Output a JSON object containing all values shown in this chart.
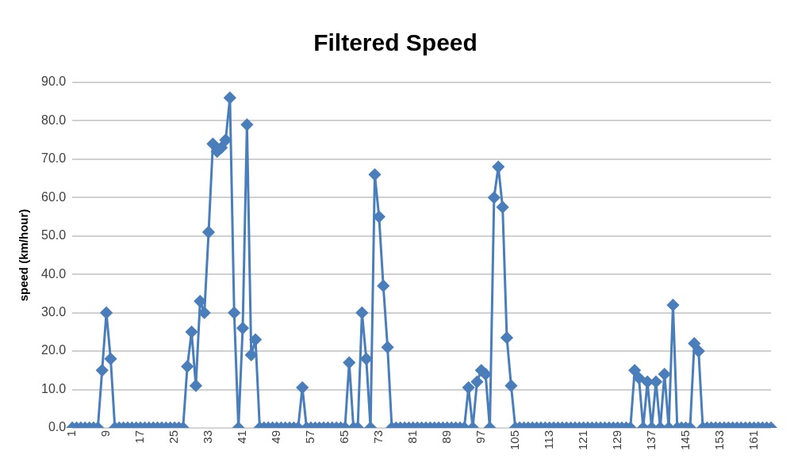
{
  "chart_data": {
    "type": "line",
    "title": "Filtered Speed",
    "ylabel": "speed (km/hour)",
    "categories": [
      "1",
      null,
      null,
      null,
      null,
      null,
      null,
      null,
      "9",
      null,
      null,
      null,
      null,
      null,
      null,
      null,
      "17",
      null,
      null,
      null,
      null,
      null,
      null,
      null,
      "25",
      null,
      null,
      null,
      null,
      null,
      null,
      null,
      "33",
      null,
      null,
      null,
      null,
      null,
      null,
      null,
      "41",
      null,
      null,
      null,
      null,
      null,
      null,
      null,
      "49",
      null,
      null,
      null,
      null,
      null,
      null,
      null,
      "57",
      null,
      null,
      null,
      null,
      null,
      null,
      null,
      "65",
      null,
      null,
      null,
      null,
      null,
      null,
      null,
      "73",
      null,
      null,
      null,
      null,
      null,
      null,
      null,
      "81",
      null,
      null,
      null,
      null,
      null,
      null,
      null,
      "89",
      null,
      null,
      null,
      null,
      null,
      null,
      null,
      "97",
      null,
      null,
      null,
      null,
      null,
      null,
      null,
      "105",
      null,
      null,
      null,
      null,
      null,
      null,
      null,
      "113",
      null,
      null,
      null,
      null,
      null,
      null,
      null,
      "121",
      null,
      null,
      null,
      null,
      null,
      null,
      null,
      "129",
      null,
      null,
      null,
      null,
      null,
      null,
      null,
      "137",
      null,
      null,
      null,
      null,
      null,
      null,
      null,
      "145",
      null,
      null,
      null,
      null,
      null,
      null,
      null,
      "153",
      null,
      null,
      null,
      null,
      null,
      null,
      null,
      "161",
      null,
      null,
      null,
      null
    ],
    "series": [
      {
        "color": "#4a7ebb",
        "values": [
          0,
          0,
          0,
          0,
          0,
          0,
          0,
          15,
          30,
          18,
          0,
          0,
          0,
          0,
          0,
          0,
          0,
          0,
          0,
          0,
          0,
          0,
          0,
          0,
          0,
          0,
          0,
          16,
          25,
          11,
          33,
          30,
          51,
          74,
          72,
          73,
          75,
          86,
          30,
          0,
          26,
          79,
          19,
          23,
          0,
          0,
          0,
          0,
          0,
          0,
          0,
          0,
          0,
          0,
          10.5,
          0,
          0,
          0,
          0,
          0,
          0,
          0,
          0,
          0,
          0,
          17,
          0,
          0,
          30,
          18,
          0,
          66,
          55,
          37,
          21,
          0,
          0,
          0,
          0,
          0,
          0,
          0,
          0,
          0,
          0,
          0,
          0,
          0,
          0,
          0,
          0,
          0,
          0,
          10.5,
          0,
          12,
          15,
          14,
          0,
          60,
          68,
          57.5,
          23.5,
          11,
          0,
          0,
          0,
          0,
          0,
          0,
          0,
          0,
          0,
          0,
          0,
          0,
          0,
          0,
          0,
          0,
          0,
          0,
          0,
          0,
          0,
          0,
          0,
          0,
          0,
          0,
          0,
          0,
          15,
          13,
          0,
          12,
          0,
          12,
          0,
          14,
          0,
          32,
          0,
          0,
          0,
          0,
          22,
          20,
          0,
          0,
          0,
          0,
          0,
          0,
          0,
          0,
          0,
          0,
          0,
          0,
          0,
          0,
          0,
          0,
          0
        ]
      }
    ],
    "ylim": [
      0,
      90
    ],
    "yticks": [
      {
        "value": 0,
        "label": "0.0"
      },
      {
        "value": 10,
        "label": "10.0"
      },
      {
        "value": 20,
        "label": "20.0"
      },
      {
        "value": 30,
        "label": "30.0"
      },
      {
        "value": 40,
        "label": "40.0"
      },
      {
        "value": 50,
        "label": "50.0"
      },
      {
        "value": 60,
        "label": "60.0"
      },
      {
        "value": 70,
        "label": "70.0"
      },
      {
        "value": 80,
        "label": "80.0"
      },
      {
        "value": 90,
        "label": "90.0"
      }
    ],
    "grid": "y",
    "legend": false,
    "marker": "diamond",
    "line_style": "solid"
  }
}
